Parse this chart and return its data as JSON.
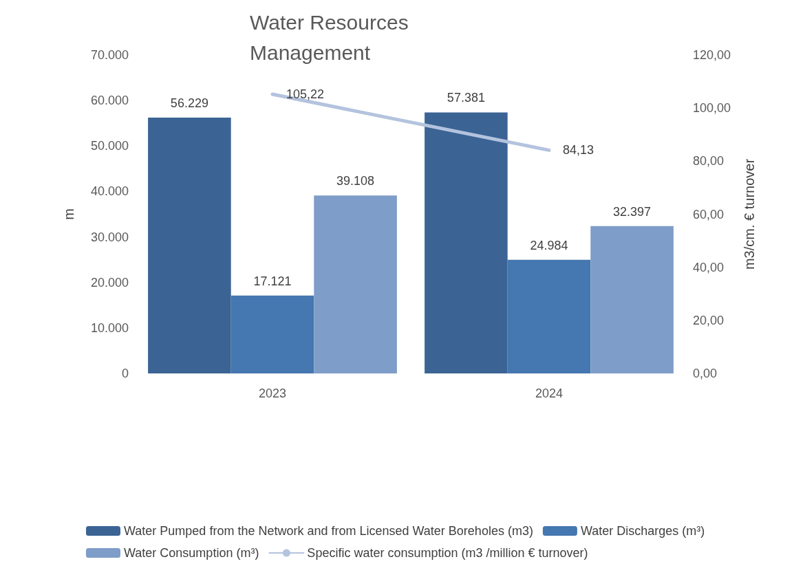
{
  "chart_data": {
    "type": "bar",
    "title": "Water Resources\nManagement",
    "ylabel": "m",
    "y2label": "m3/cm. € turnover",
    "categories": [
      "2023",
      "2024"
    ],
    "series": [
      {
        "name": "Water Pumped from the Network and from Licensed Water Boreholes (m3)",
        "color": "#3b6494",
        "values": [
          56229,
          57381
        ],
        "value_labels": [
          "56.229",
          "57.381"
        ]
      },
      {
        "name": "Water Discharges (m³)",
        "color": "#4577b0",
        "values": [
          17121,
          24984
        ],
        "value_labels": [
          "17.121",
          "24.984"
        ]
      },
      {
        "name": "Water Consumption (m³)",
        "color": "#7e9dc8",
        "values": [
          39108,
          32397
        ],
        "value_labels": [
          "39.108",
          "32.397"
        ]
      },
      {
        "name": "Specific water consumption (m3 /million € turnover)",
        "type": "line",
        "axis": "y2",
        "color": "#b4c3de",
        "values": [
          105.22,
          84.13
        ],
        "value_labels": [
          "105,22",
          "84,13"
        ],
        "marker": "none"
      }
    ],
    "ylim": [
      0,
      70000
    ],
    "yticks": [
      0,
      {
        "value": 10000,
        "label": "10.000"
      },
      {
        "value": 20000,
        "label": "20.000"
      },
      {
        "value": 30000,
        "label": "30.000"
      },
      {
        "value": 40000,
        "label": "40.000"
      },
      {
        "value": 50000,
        "label": "50.000"
      },
      {
        "value": 60000,
        "label": "60.000"
      },
      {
        "value": 70000,
        "label": "70.000"
      }
    ],
    "y2lim": [
      0,
      120
    ],
    "y2ticks": [
      {
        "value": 0,
        "label": "0,00"
      },
      {
        "value": 20,
        "label": "20,00"
      },
      {
        "value": 40,
        "label": "40,00"
      },
      {
        "value": 60,
        "label": "60,00"
      },
      {
        "value": 80,
        "label": "80,00"
      },
      {
        "value": 100,
        "label": "100,00"
      },
      {
        "value": 120,
        "label": "120,00"
      }
    ],
    "grid": false,
    "legend": "bottom"
  }
}
